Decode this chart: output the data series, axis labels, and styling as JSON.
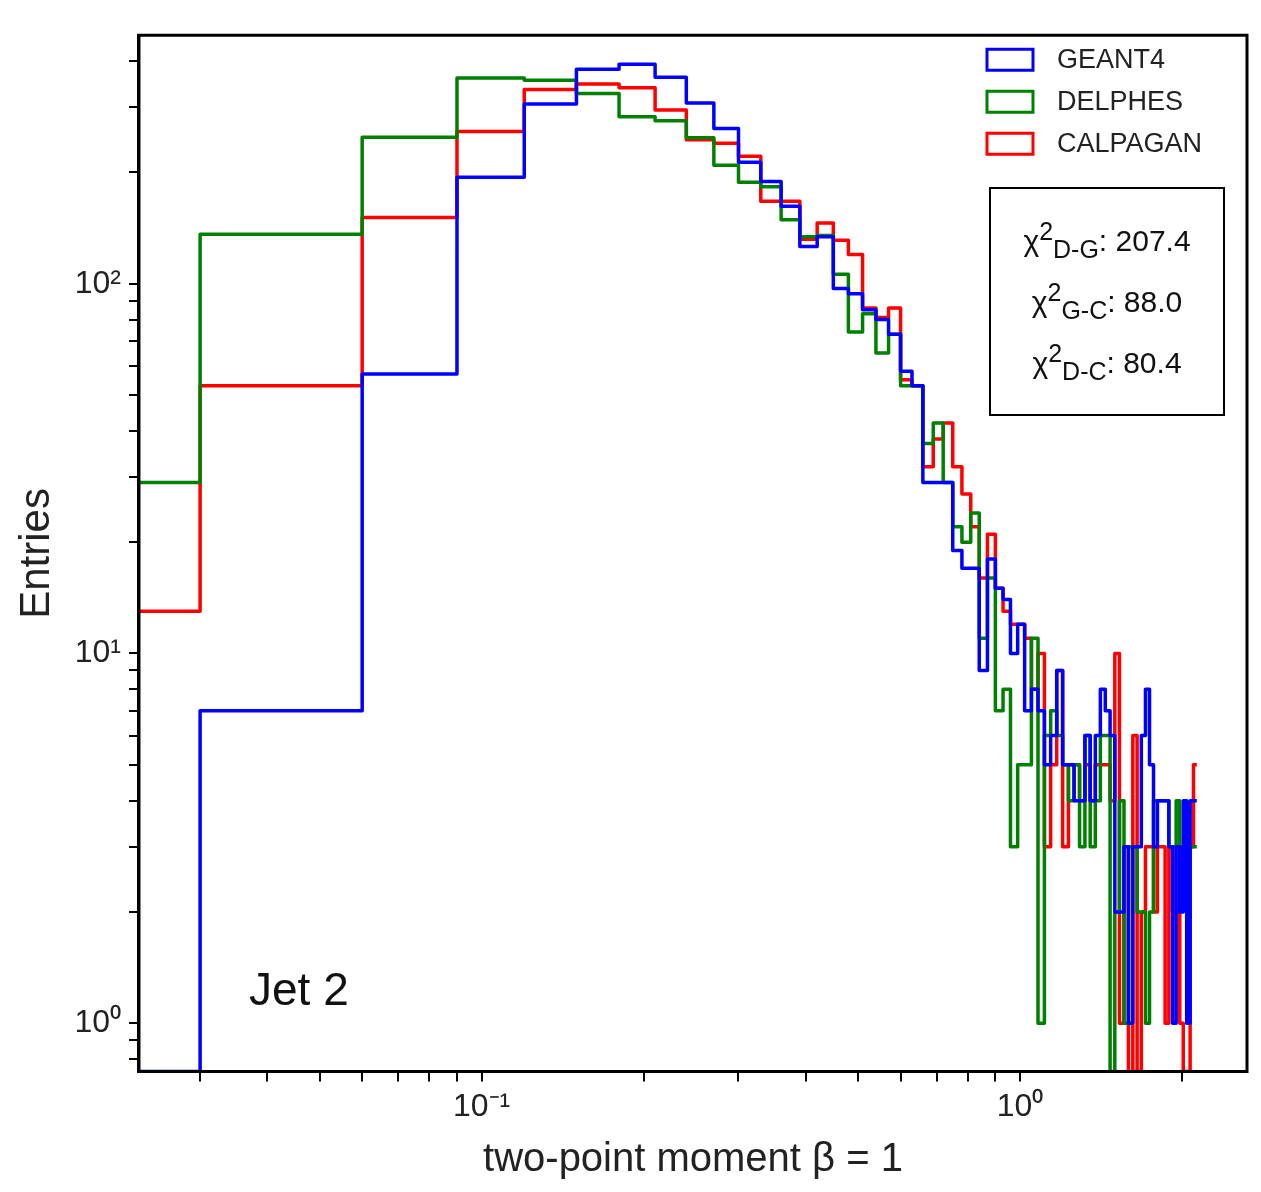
{
  "chart_data": {
    "type": "histogram",
    "xlabel": "two-point moment β = 1",
    "ylabel": "Entries",
    "bins": [
      0.0231,
      0.03,
      0.06,
      0.09,
      0.12,
      0.15,
      0.18,
      0.21,
      0.24,
      0.27,
      0.3,
      0.33,
      0.36,
      0.39,
      0.42,
      0.45,
      0.48,
      0.51,
      0.54,
      0.57,
      0.6,
      0.63,
      0.66,
      0.69,
      0.72,
      0.75,
      0.78,
      0.81,
      0.84,
      0.87,
      0.9,
      0.93,
      0.96,
      0.99,
      1.02,
      1.05,
      1.08,
      1.11,
      1.14,
      1.17,
      1.2,
      1.23,
      1.26,
      1.29,
      1.32,
      1.35,
      1.38,
      1.41,
      1.44,
      1.47,
      1.5,
      1.53,
      1.56,
      1.59,
      1.62,
      1.65,
      1.68,
      1.71,
      1.74,
      1.77,
      1.8,
      1.83,
      1.86,
      1.89,
      1.92,
      1.95,
      1.98,
      2.01,
      2.04,
      2.07,
      2.1,
      2.13
    ],
    "series": [
      {
        "name": "GEANT4",
        "color": "#0000ff",
        "values": [
          null,
          7,
          57,
          194,
          306,
          380,
          392,
          362,
          308,
          263,
          213,
          189,
          162,
          126,
          134,
          97,
          94,
          85,
          80,
          73,
          58,
          53,
          29,
          29,
          29,
          19,
          17,
          17,
          9,
          18,
          15,
          14,
          10,
          12,
          7,
          8,
          7,
          5,
          6,
          9,
          5,
          5,
          4,
          4,
          6,
          4,
          6,
          8,
          7,
          6,
          2,
          2,
          3,
          1,
          3,
          3,
          6,
          8,
          5,
          3,
          4,
          4,
          4,
          3,
          1,
          3,
          2,
          4,
          1,
          4,
          4
        ]
      },
      {
        "name": "DELPHES",
        "color": "#008000",
        "values": [
          29,
          136,
          249,
          360,
          355,
          327,
          283,
          276,
          248,
          209,
          188,
          183,
          149,
          134,
          135,
          106,
          74,
          83,
          65,
          73,
          53,
          53,
          37,
          42,
          29,
          22,
          20,
          24,
          11,
          16,
          7,
          8,
          3,
          5,
          5,
          11,
          1,
          6,
          7,
          6,
          5,
          4,
          5,
          3,
          6,
          3,
          4,
          6,
          6,
          null,
          2,
          4,
          1,
          3,
          3,
          2,
          2,
          1,
          2,
          4,
          4,
          4,
          4,
          3,
          3,
          4,
          3,
          3,
          3,
          3,
          3
        ]
      },
      {
        "name": "CALPAGAN",
        "color": "#ff0000",
        "values": [
          13,
          53,
          151,
          258,
          335,
          347,
          339,
          295,
          245,
          240,
          221,
          167,
          167,
          132,
          146,
          131,
          120,
          86,
          81,
          86,
          55,
          53,
          32,
          38,
          42,
          32,
          27,
          22,
          16,
          21,
          15,
          13,
          12,
          12,
          11,
          8,
          10,
          3,
          5,
          9,
          3,
          5,
          5,
          4,
          5,
          4,
          5,
          5,
          5,
          4,
          10,
          1,
          3,
          null,
          6,
          null,
          2,
          3,
          3,
          2,
          3,
          3,
          1,
          3,
          2,
          2,
          1,
          null,
          null,
          3,
          5
        ]
      }
    ],
    "xlim": [
      0.0231,
      2.64
    ],
    "ylim": [
      0.74,
      470
    ],
    "log": "xy",
    "xticks": [
      {
        "value": 0.03,
        "label": null
      },
      {
        "value": 0.04,
        "label": null
      },
      {
        "value": 0.05,
        "label": null
      },
      {
        "value": 0.06,
        "label": null
      },
      {
        "value": 0.07,
        "label": null
      },
      {
        "value": 0.08,
        "label": null
      },
      {
        "value": 0.09,
        "label": null
      },
      {
        "value": 0.1,
        "label": "10⁻¹"
      },
      {
        "value": 0.2,
        "label": null
      },
      {
        "value": 0.3,
        "label": null
      },
      {
        "value": 0.4,
        "label": null
      },
      {
        "value": 0.5,
        "label": null
      },
      {
        "value": 0.6,
        "label": null
      },
      {
        "value": 0.7,
        "label": null
      },
      {
        "value": 0.8,
        "label": null
      },
      {
        "value": 0.9,
        "label": null
      },
      {
        "value": 1,
        "label": "10⁰"
      },
      {
        "value": 2,
        "label": null
      }
    ],
    "yticks": [
      {
        "value": 0.8,
        "label": null
      },
      {
        "value": 0.9,
        "label": null
      },
      {
        "value": 1,
        "label": "10⁰"
      },
      {
        "value": 2,
        "label": null
      },
      {
        "value": 3,
        "label": null
      },
      {
        "value": 4,
        "label": null
      },
      {
        "value": 5,
        "label": null
      },
      {
        "value": 6,
        "label": null
      },
      {
        "value": 7,
        "label": null
      },
      {
        "value": 8,
        "label": null
      },
      {
        "value": 9,
        "label": null
      },
      {
        "value": 10,
        "label": "10¹"
      },
      {
        "value": 20,
        "label": null
      },
      {
        "value": 30,
        "label": null
      },
      {
        "value": 40,
        "label": null
      },
      {
        "value": 50,
        "label": null
      },
      {
        "value": 60,
        "label": null
      },
      {
        "value": 70,
        "label": null
      },
      {
        "value": 80,
        "label": null
      },
      {
        "value": 90,
        "label": null
      },
      {
        "value": 100,
        "label": "10²"
      },
      {
        "value": 200,
        "label": null
      },
      {
        "value": 300,
        "label": null
      },
      {
        "value": 400,
        "label": null
      }
    ],
    "legend": "top right",
    "annotations": [
      "Jet 2",
      "χ$^{2}$$_{D-G}$: 207.4",
      "χ$^{2}$$_{G-C}$: 88.0",
      "χ$^{2}$$_{D-C}$: 80.4"
    ]
  }
}
